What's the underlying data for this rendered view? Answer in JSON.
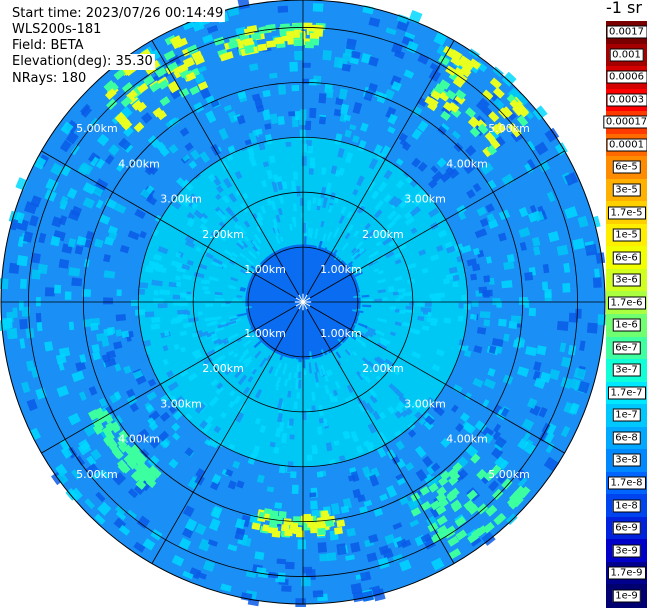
{
  "info": {
    "start_time": "Start time: 2023/07/26 00:14:49",
    "instrument": "WLS200s-181",
    "field": "Field: BETA",
    "elevation": "Elevation(deg): 35.30",
    "nrays": "NRays: 180"
  },
  "colorbar": {
    "title": "-1 sr",
    "bands": [
      {
        "label": "0.0017",
        "color": "#7a0000"
      },
      {
        "label": "0.001",
        "color": "#a50000"
      },
      {
        "label": "0.0006",
        "color": "#d40000"
      },
      {
        "label": "0.0003",
        "color": "#ff0000"
      },
      {
        "label": "0.00017",
        "color": "#ff3a00"
      },
      {
        "label": "0.0001",
        "color": "#ff6a00"
      },
      {
        "label": "6e-5",
        "color": "#ff8c00"
      },
      {
        "label": "3e-5",
        "color": "#ffb000"
      },
      {
        "label": "1.7e-5",
        "color": "#ffd000"
      },
      {
        "label": "1e-5",
        "color": "#ffee00"
      },
      {
        "label": "6e-6",
        "color": "#f2ff00"
      },
      {
        "label": "3e-6",
        "color": "#d0ff20"
      },
      {
        "label": "1.7e-6",
        "color": "#aaff40"
      },
      {
        "label": "1e-6",
        "color": "#70ff70"
      },
      {
        "label": "6e-7",
        "color": "#40ffa0"
      },
      {
        "label": "3e-7",
        "color": "#10ffd8"
      },
      {
        "label": "1.7e-7",
        "color": "#00e8ff"
      },
      {
        "label": "1e-7",
        "color": "#00c8ff"
      },
      {
        "label": "6e-8",
        "color": "#00a8ff"
      },
      {
        "label": "3e-8",
        "color": "#0088ff"
      },
      {
        "label": "1.7e-8",
        "color": "#0066ff"
      },
      {
        "label": "1e-8",
        "color": "#0044f0"
      },
      {
        "label": "6e-9",
        "color": "#0022dd"
      },
      {
        "label": "3e-9",
        "color": "#0000c8"
      },
      {
        "label": "1.7e-9",
        "color": "#00008c"
      },
      {
        "label": "1e-9",
        "color": "#000070"
      }
    ]
  },
  "chart_data": {
    "type": "heatmap",
    "projection": "polar PPI",
    "title": "",
    "range_unit": "km",
    "max_range_km": 5.5,
    "range_rings_km": [
      1,
      2,
      3,
      4,
      5
    ],
    "range_labels": [
      "1.00km",
      "2.00km",
      "3.00km",
      "4.00km",
      "5.00km"
    ],
    "azimuth_lines_deg": [
      0,
      30,
      60,
      90,
      120,
      150,
      180,
      210,
      240,
      270,
      300,
      330
    ],
    "colors": {
      "near_core": "#0a6cf0",
      "inner_disk": "#00c8f5",
      "outer_field": "#1a8ff5",
      "speckle_light": "#00d8ff",
      "speckle_dark": "#0a5ae6",
      "band_green": "#3cffa0",
      "band_yellow": "#e8ff20"
    },
    "bands": [
      {
        "center_deg": 325,
        "range_km": [
          4.2,
          5.3
        ],
        "level": "1e-5"
      },
      {
        "center_deg": 352,
        "range_km": [
          4.6,
          5.0
        ],
        "level": "1e-5"
      },
      {
        "center_deg": 40,
        "range_km": [
          4.2,
          5.3
        ],
        "level": "1e-5"
      },
      {
        "center_deg": 140,
        "range_km": [
          4.0,
          5.3
        ],
        "level": "3e-7"
      },
      {
        "center_deg": 180,
        "range_km": [
          3.8,
          4.2
        ],
        "level": "6e-6"
      },
      {
        "center_deg": 230,
        "range_km": [
          4.0,
          4.4
        ],
        "level": "1e-6"
      }
    ],
    "levels": [
      "0.0017",
      "0.001",
      "0.0006",
      "0.0003",
      "0.00017",
      "0.0001",
      "6e-5",
      "3e-5",
      "1.7e-5",
      "1e-5",
      "6e-6",
      "3e-6",
      "1.7e-6",
      "1e-6",
      "6e-7",
      "3e-7",
      "1.7e-7",
      "1e-7",
      "6e-8",
      "3e-8",
      "1.7e-8",
      "1e-8",
      "6e-9",
      "3e-9",
      "1.7e-9",
      "1e-9"
    ]
  }
}
